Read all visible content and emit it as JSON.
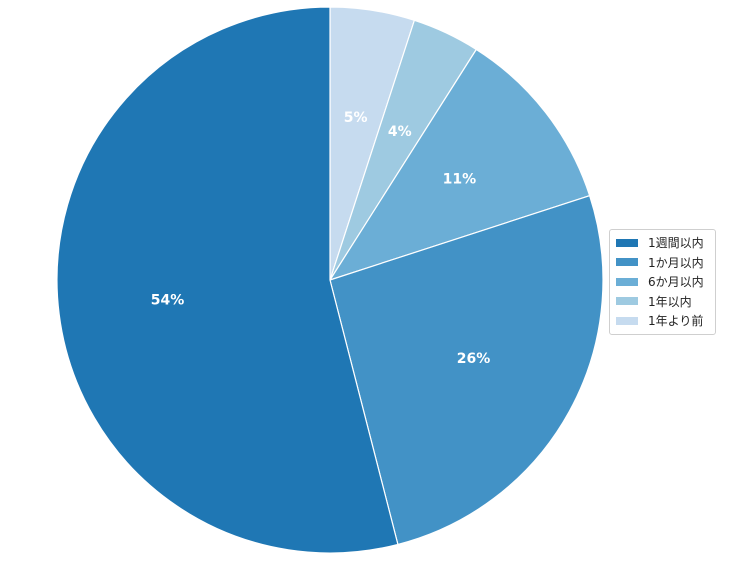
{
  "chart_data": {
    "type": "pie",
    "title": "",
    "slices": [
      {
        "label": "1週間以内",
        "value": 54,
        "display": "54%",
        "color": "#1f77b4"
      },
      {
        "label": "1か月以内",
        "value": 26,
        "display": "26%",
        "color": "#4292c6"
      },
      {
        "label": "6か月以内",
        "value": 11,
        "display": "11%",
        "color": "#6baed6"
      },
      {
        "label": "1年以内",
        "value": 4,
        "display": "4%",
        "color": "#9ecae1"
      },
      {
        "label": "1年より前",
        "value": 5,
        "display": "5%",
        "color": "#c6dbef"
      }
    ],
    "start_angle_deg": 90,
    "direction": "clockwise",
    "legend_position": "right"
  }
}
